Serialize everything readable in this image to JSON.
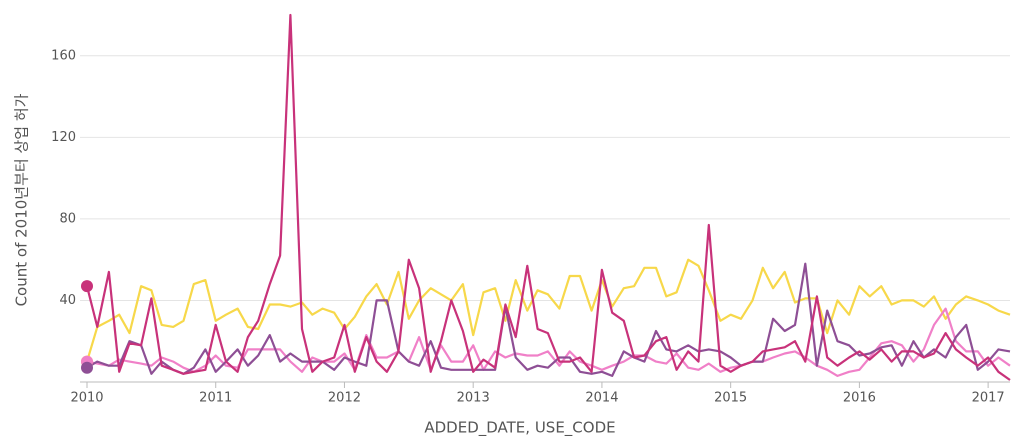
{
  "chart_data": {
    "type": "line",
    "y_label": "Count of 2010년부터 상업 허가",
    "x_label": "ADDED_DATE, USE_CODE",
    "x": [
      2010,
      2010.08,
      2010.17,
      2010.25,
      2010.33,
      2010.42,
      2010.5,
      2010.58,
      2010.67,
      2010.75,
      2010.83,
      2010.92,
      2011,
      2011.08,
      2011.17,
      2011.25,
      2011.33,
      2011.42,
      2011.5,
      2011.58,
      2011.67,
      2011.75,
      2011.83,
      2011.92,
      2012,
      2012.08,
      2012.17,
      2012.25,
      2012.33,
      2012.42,
      2012.5,
      2012.58,
      2012.67,
      2012.75,
      2012.83,
      2012.92,
      2013,
      2013.08,
      2013.17,
      2013.25,
      2013.33,
      2013.42,
      2013.5,
      2013.58,
      2013.67,
      2013.75,
      2013.83,
      2013.92,
      2014,
      2014.08,
      2014.17,
      2014.25,
      2014.33,
      2014.42,
      2014.5,
      2014.58,
      2014.67,
      2014.75,
      2014.83,
      2014.92,
      2015,
      2015.08,
      2015.17,
      2015.25,
      2015.33,
      2015.42,
      2015.5,
      2015.58,
      2015.67,
      2015.75,
      2015.83,
      2015.92,
      2016,
      2016.08,
      2016.17,
      2016.25,
      2016.33,
      2016.42,
      2016.5,
      2016.58,
      2016.67,
      2016.75,
      2016.83,
      2016.92,
      2017,
      2017.08,
      2017.17
    ],
    "series": [
      {
        "color": "#f7d84a",
        "values": [
          10,
          27,
          30,
          33,
          24,
          47,
          45,
          28,
          27,
          30,
          48,
          50,
          30,
          33,
          36,
          27,
          26,
          38,
          38,
          37,
          39,
          33,
          36,
          34,
          26,
          32,
          42,
          48,
          38,
          54,
          31,
          40,
          46,
          43,
          40,
          48,
          23,
          44,
          46,
          30,
          50,
          35,
          45,
          43,
          36,
          52,
          52,
          35,
          50,
          37,
          46,
          47,
          56,
          56,
          42,
          44,
          60,
          57,
          45,
          30,
          33,
          31,
          40,
          56,
          46,
          54,
          39,
          41,
          41,
          24,
          40,
          33,
          47,
          42,
          47,
          38,
          40,
          40,
          37,
          42,
          31,
          38,
          42,
          40,
          38,
          35,
          33
        ]
      },
      {
        "color": "#f080c8",
        "values": [
          10,
          9,
          8,
          11,
          10,
          9,
          8,
          12,
          10,
          7,
          5,
          8,
          13,
          8,
          7,
          16,
          16,
          16,
          16,
          10,
          5,
          12,
          10,
          10,
          14,
          6,
          23,
          12,
          12,
          15,
          10,
          22,
          6,
          18,
          10,
          10,
          18,
          6,
          15,
          12,
          14,
          13,
          13,
          15,
          8,
          15,
          10,
          8,
          6,
          8,
          10,
          13,
          13,
          10,
          9,
          14,
          7,
          6,
          9,
          5,
          7,
          8,
          10,
          10,
          12,
          14,
          15,
          12,
          8,
          6,
          3,
          5,
          6,
          12,
          19,
          20,
          18,
          10,
          16,
          28,
          36,
          20,
          15,
          15,
          8,
          12,
          8
        ]
      },
      {
        "color": "#8e4f95",
        "values": [
          7,
          10,
          8,
          8,
          20,
          18,
          4,
          10,
          6,
          4,
          7,
          16,
          5,
          10,
          16,
          8,
          13,
          23,
          10,
          14,
          10,
          10,
          10,
          6,
          12,
          10,
          8,
          40,
          40,
          15,
          10,
          8,
          20,
          7,
          6,
          6,
          6,
          6,
          6,
          37,
          12,
          6,
          8,
          7,
          12,
          12,
          5,
          4,
          5,
          3,
          15,
          12,
          10,
          25,
          16,
          15,
          18,
          15,
          16,
          15,
          12,
          8,
          10,
          10,
          31,
          25,
          28,
          58,
          8,
          35,
          20,
          18,
          13,
          14,
          17,
          18,
          8,
          20,
          12,
          16,
          12,
          22,
          28,
          6,
          10,
          16,
          15
        ]
      },
      {
        "color": "#c8327a",
        "values": [
          47,
          27,
          54,
          5,
          19,
          18,
          41,
          8,
          6,
          4,
          5,
          6,
          28,
          10,
          5,
          22,
          30,
          48,
          62,
          180,
          26,
          5,
          10,
          12,
          28,
          5,
          22,
          10,
          5,
          15,
          60,
          46,
          5,
          20,
          40,
          25,
          5,
          11,
          7,
          38,
          22,
          57,
          26,
          24,
          10,
          10,
          12,
          5,
          55,
          34,
          30,
          12,
          13,
          20,
          22,
          6,
          15,
          10,
          77,
          8,
          5,
          8,
          10,
          15,
          16,
          17,
          20,
          10,
          42,
          12,
          8,
          12,
          15,
          11,
          16,
          10,
          15,
          15,
          12,
          14,
          24,
          16,
          12,
          8,
          12,
          5,
          1
        ]
      }
    ],
    "xlim": [
      2010,
      2017.17
    ],
    "xticks": [
      2010,
      2011,
      2012,
      2013,
      2014,
      2015,
      2016,
      2017
    ],
    "ylim": [
      0,
      180
    ],
    "yticks": [
      40,
      80,
      120,
      160
    ],
    "grid": true
  }
}
